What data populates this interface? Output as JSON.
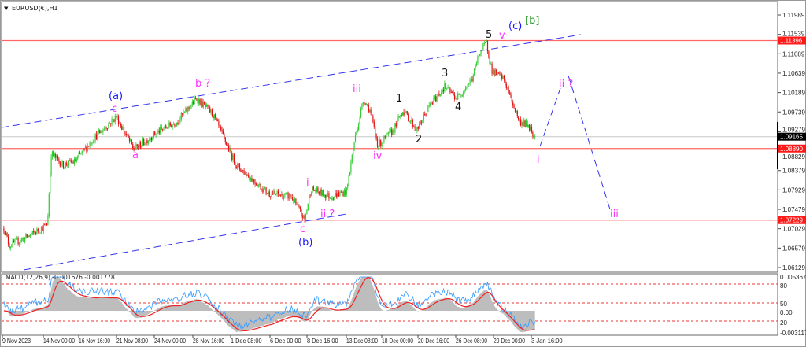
{
  "window": {
    "title": "EURUSD(€),H1"
  },
  "colors": {
    "bull": "#33cc33",
    "bear": "#e01010",
    "support": "#ff6666",
    "channel": "#3333ee",
    "wave_blue": "#1a1aff",
    "wave_magenta": "#ff33ff",
    "wave_black": "#111111",
    "wave_green": "#2a9a2a",
    "macd_hist": "#bdbdbd",
    "macd_main": "#3399ff",
    "macd_signal": "#ee2222"
  },
  "chart_data": {
    "type": "candlestick",
    "symbol": "EURUSD(€),H1",
    "x_ticks": [
      "9 Nov 2023",
      "14 Nov 00:00",
      "16 Nov 16:00",
      "21 Nov 08:00",
      "24 Nov 00:00",
      "28 Nov 16:00",
      "1 Dec 08:00",
      "6 Dec 00:00",
      "8 Dec 16:00",
      "13 Dec 08:00",
      "18 Dec 00:00",
      "20 Dec 16:00",
      "26 Dec 08:00",
      "29 Dec 00:00",
      "3 Jan 16:00"
    ],
    "y_ticks": [
      "1.11989",
      "1.11539",
      "1.11089",
      "1.10639",
      "1.10189",
      "1.09739",
      "1.09279",
      "1.08829",
      "1.08379",
      "1.07929",
      "1.07479",
      "1.07029",
      "1.06579",
      "1.06129"
    ],
    "ylim": [
      1.06129,
      1.11989
    ],
    "price_path_units": "bars (H1) from chart start, price",
    "price_pivots": [
      [
        7,
        1.0704
      ],
      [
        17,
        1.0664
      ],
      [
        57,
        1.0689
      ],
      [
        86,
        1.0713
      ],
      [
        93,
        1.0878
      ],
      [
        114,
        1.085
      ],
      [
        136,
        1.0859
      ],
      [
        171,
        1.0914
      ],
      [
        211,
        1.0963
      ],
      [
        243,
        1.0887
      ],
      [
        286,
        1.0927
      ],
      [
        321,
        1.0951
      ],
      [
        357,
        1.1005
      ],
      [
        386,
        1.0969
      ],
      [
        429,
        1.085
      ],
      [
        486,
        1.0786
      ],
      [
        529,
        1.0777
      ],
      [
        553,
        1.0723
      ],
      [
        564,
        1.0795
      ],
      [
        600,
        1.0777
      ],
      [
        629,
        1.079
      ],
      [
        643,
        1.0905
      ],
      [
        660,
        1.1005
      ],
      [
        671,
        1.0978
      ],
      [
        686,
        1.0896
      ],
      [
        714,
        1.0932
      ],
      [
        731,
        1.0978
      ],
      [
        757,
        1.0932
      ],
      [
        779,
        1.0987
      ],
      [
        807,
        1.1033
      ],
      [
        829,
        1.1005
      ],
      [
        857,
        1.1051
      ],
      [
        871,
        1.1115
      ],
      [
        883,
        1.1133
      ],
      [
        893,
        1.1069
      ],
      [
        914,
        1.1051
      ],
      [
        943,
        1.0951
      ],
      [
        960,
        1.0942
      ],
      [
        971,
        1.0916
      ]
    ],
    "current_price": "1.09165",
    "horizontal_levels": [
      "1.11396",
      "1.08890",
      "1.07229"
    ],
    "wave_labels": {
      "a_paren": "(a)",
      "b_paren": "(b)",
      "c_paren": "(c)",
      "b_bracket": "[b]",
      "c_minor1": "c",
      "a_minor": "a",
      "b_minor": "b ?",
      "c_minor2": "c",
      "i1": "i",
      "ii1": "ii ?",
      "iii1": "iii",
      "iv1": "iv",
      "v1": "v",
      "w1": "1",
      "w2": "2",
      "w3": "3",
      "w4": "4",
      "w5": "5",
      "i2": "i",
      "ii2": "ii ?",
      "iii2": "iii"
    },
    "indicator": {
      "label": "MACD(12,26,9) -0.001676 -0.001778",
      "y_labels": [
        "0.005367",
        "80",
        "50",
        "0.00",
        "20",
        "-0.003117"
      ]
    }
  }
}
